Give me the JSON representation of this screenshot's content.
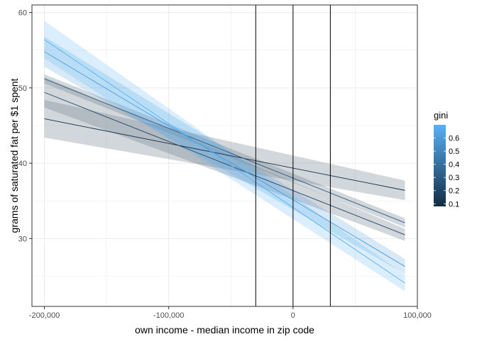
{
  "chart_data": {
    "type": "line",
    "title": "",
    "xlabel": "own income - median income in zip code",
    "ylabel": "grams of saturated fat per $1 spent",
    "xlim": [
      -210000,
      100000
    ],
    "ylim": [
      21,
      61
    ],
    "x_ticks": [
      -200000,
      -100000,
      0,
      100000
    ],
    "x_tick_labels": [
      "-200,000",
      "-100,000",
      "0",
      "100,000"
    ],
    "y_ticks": [
      30,
      40,
      50,
      60
    ],
    "y_tick_labels": [
      "30",
      "40",
      "50",
      "60"
    ],
    "grid": true,
    "vertical_lines": [
      -30000,
      0,
      30000
    ],
    "series": [
      {
        "x": [
          -200000,
          90000
        ],
        "y": [
          45.9,
          36.4
        ],
        "band_low": [
          43.4,
          35.1
        ],
        "band_high": [
          48.4,
          37.7
        ],
        "gini": 0.1
      },
      {
        "x": [
          -200000,
          90000
        ],
        "y": [
          49.4,
          30.5
        ],
        "band_low": [
          47.4,
          29.7
        ],
        "band_high": [
          51.4,
          31.3
        ],
        "gini": 0.2
      },
      {
        "x": [
          -200000,
          90000
        ],
        "y": [
          51.2,
          32.1
        ],
        "band_low": [
          50.6,
          31.5
        ],
        "band_high": [
          51.8,
          32.7
        ],
        "gini": 0.3
      },
      {
        "x": [
          -200000,
          90000
        ],
        "y": [
          54.8,
          26.3
        ],
        "band_low": [
          52.8,
          25.3
        ],
        "band_high": [
          56.8,
          27.3
        ],
        "gini": 0.6
      },
      {
        "x": [
          -200000,
          90000
        ],
        "y": [
          56.4,
          24.1
        ],
        "band_low": [
          53.9,
          23.0
        ],
        "band_high": [
          58.9,
          25.2
        ],
        "gini": 0.7
      }
    ],
    "legend": {
      "title": "gini",
      "placement": "right",
      "ticks": [
        0.1,
        0.2,
        0.3,
        0.4,
        0.5,
        0.6
      ],
      "tick_labels": [
        "0.1",
        "0.2",
        "0.3",
        "0.4",
        "0.5",
        "0.6"
      ],
      "range": [
        0.08,
        0.7
      ],
      "low_color": "#132b43",
      "high_color": "#56b1f7"
    },
    "band_color": "#6b7b89",
    "vline_color": "#000000",
    "grid_color": "#ebebeb",
    "panel_border_color": "#333333"
  }
}
